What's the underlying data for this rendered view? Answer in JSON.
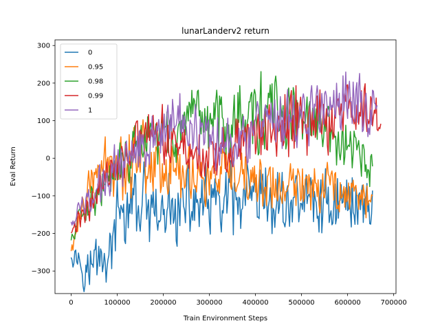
{
  "chart_data": {
    "type": "line",
    "title": "lunarLanderv2 return",
    "xlabel": "Train Environment Steps",
    "ylabel": "Eval Return",
    "xlim": [
      -35000,
      705000
    ],
    "ylim": [
      -360,
      315
    ],
    "xticks": [
      0,
      100000,
      200000,
      300000,
      400000,
      500000,
      600000,
      700000
    ],
    "xtick_labels": [
      "0",
      "100000",
      "200000",
      "300000",
      "400000",
      "500000",
      "600000",
      "700000"
    ],
    "yticks": [
      -300,
      -200,
      -100,
      0,
      100,
      200,
      300
    ],
    "ytick_labels": [
      "−300",
      "−200",
      "−100",
      "0",
      "100",
      "200",
      "300"
    ],
    "grid": false,
    "legend_position": "upper-left",
    "series": [
      {
        "name": "0",
        "color": "#1f77b4",
        "x_end": 655000,
        "points": [
          [
            0,
            -240
          ],
          [
            20000,
            -270
          ],
          [
            40000,
            -300
          ],
          [
            60000,
            -250
          ],
          [
            80000,
            -280
          ],
          [
            100000,
            -160
          ],
          [
            120000,
            -150
          ],
          [
            140000,
            -120
          ],
          [
            160000,
            -130
          ],
          [
            180000,
            -170
          ],
          [
            200000,
            -160
          ],
          [
            220000,
            -140
          ],
          [
            240000,
            -140
          ],
          [
            260000,
            -120
          ],
          [
            280000,
            -120
          ],
          [
            300000,
            -130
          ],
          [
            320000,
            -130
          ],
          [
            340000,
            -110
          ],
          [
            360000,
            -140
          ],
          [
            380000,
            -110
          ],
          [
            400000,
            -130
          ],
          [
            420000,
            -110
          ],
          [
            440000,
            -140
          ],
          [
            460000,
            -110
          ],
          [
            480000,
            -120
          ],
          [
            500000,
            -100
          ],
          [
            520000,
            -110
          ],
          [
            540000,
            -130
          ],
          [
            560000,
            -110
          ],
          [
            580000,
            -120
          ],
          [
            600000,
            -110
          ],
          [
            620000,
            -110
          ],
          [
            640000,
            -120
          ],
          [
            655000,
            -130
          ]
        ],
        "amplitude": [
          40,
          60,
          80,
          80,
          70,
          90,
          110,
          120,
          120,
          110,
          110,
          110,
          110,
          110,
          110,
          110,
          110,
          110,
          120,
          120,
          110,
          110,
          110,
          110,
          100,
          100,
          100,
          100,
          100,
          100,
          100,
          100,
          90,
          60
        ]
      },
      {
        "name": "0.95",
        "color": "#ff7f0e",
        "x_end": 655000,
        "points": [
          [
            0,
            -250
          ],
          [
            20000,
            -150
          ],
          [
            40000,
            -80
          ],
          [
            60000,
            -30
          ],
          [
            80000,
            -20
          ],
          [
            100000,
            0
          ],
          [
            120000,
            -20
          ],
          [
            140000,
            20
          ],
          [
            160000,
            10
          ],
          [
            180000,
            -10
          ],
          [
            200000,
            -20
          ],
          [
            220000,
            -30
          ],
          [
            240000,
            -40
          ],
          [
            260000,
            -30
          ],
          [
            280000,
            -50
          ],
          [
            300000,
            -60
          ],
          [
            320000,
            -50
          ],
          [
            340000,
            -50
          ],
          [
            360000,
            -60
          ],
          [
            380000,
            -60
          ],
          [
            400000,
            -60
          ],
          [
            420000,
            -70
          ],
          [
            440000,
            -80
          ],
          [
            460000,
            -90
          ],
          [
            480000,
            -80
          ],
          [
            500000,
            -70
          ],
          [
            520000,
            -60
          ],
          [
            540000,
            -70
          ],
          [
            560000,
            -70
          ],
          [
            580000,
            -80
          ],
          [
            600000,
            -90
          ],
          [
            620000,
            -90
          ],
          [
            640000,
            -100
          ],
          [
            655000,
            -110
          ]
        ],
        "amplitude": [
          30,
          50,
          60,
          70,
          80,
          100,
          110,
          110,
          100,
          100,
          90,
          90,
          90,
          90,
          90,
          80,
          80,
          80,
          80,
          80,
          80,
          80,
          80,
          80,
          80,
          80,
          80,
          80,
          80,
          70,
          70,
          70,
          70,
          60
        ]
      },
      {
        "name": "0.98",
        "color": "#2ca02c",
        "x_end": 655000,
        "points": [
          [
            0,
            -220
          ],
          [
            20000,
            -150
          ],
          [
            40000,
            -120
          ],
          [
            60000,
            -90
          ],
          [
            80000,
            -60
          ],
          [
            100000,
            -40
          ],
          [
            120000,
            0
          ],
          [
            140000,
            20
          ],
          [
            160000,
            40
          ],
          [
            180000,
            50
          ],
          [
            200000,
            60
          ],
          [
            220000,
            60
          ],
          [
            240000,
            70
          ],
          [
            260000,
            80
          ],
          [
            280000,
            90
          ],
          [
            300000,
            100
          ],
          [
            320000,
            110
          ],
          [
            340000,
            100
          ],
          [
            360000,
            110
          ],
          [
            380000,
            120
          ],
          [
            400000,
            110
          ],
          [
            420000,
            120
          ],
          [
            440000,
            120
          ],
          [
            460000,
            110
          ],
          [
            480000,
            110
          ],
          [
            500000,
            100
          ],
          [
            520000,
            90
          ],
          [
            540000,
            80
          ],
          [
            560000,
            60
          ],
          [
            580000,
            40
          ],
          [
            600000,
            20
          ],
          [
            620000,
            10
          ],
          [
            640000,
            -10
          ],
          [
            655000,
            -40
          ]
        ],
        "amplitude": [
          20,
          40,
          50,
          50,
          60,
          70,
          80,
          80,
          90,
          90,
          90,
          90,
          90,
          100,
          100,
          110,
          110,
          110,
          110,
          110,
          110,
          110,
          110,
          100,
          100,
          100,
          90,
          90,
          90,
          80,
          70,
          70,
          70,
          50
        ]
      },
      {
        "name": "0.99",
        "color": "#d62728",
        "x_end": 672000,
        "points": [
          [
            0,
            -200
          ],
          [
            20000,
            -160
          ],
          [
            40000,
            -120
          ],
          [
            60000,
            -80
          ],
          [
            80000,
            -40
          ],
          [
            100000,
            0
          ],
          [
            120000,
            20
          ],
          [
            140000,
            40
          ],
          [
            160000,
            50
          ],
          [
            180000,
            60
          ],
          [
            200000,
            50
          ],
          [
            220000,
            40
          ],
          [
            240000,
            30
          ],
          [
            260000,
            20
          ],
          [
            280000,
            10
          ],
          [
            300000,
            0
          ],
          [
            320000,
            10
          ],
          [
            340000,
            20
          ],
          [
            360000,
            40
          ],
          [
            380000,
            50
          ],
          [
            400000,
            60
          ],
          [
            420000,
            60
          ],
          [
            440000,
            70
          ],
          [
            460000,
            80
          ],
          [
            480000,
            90
          ],
          [
            500000,
            100
          ],
          [
            520000,
            100
          ],
          [
            540000,
            100
          ],
          [
            560000,
            110
          ],
          [
            580000,
            110
          ],
          [
            600000,
            120
          ],
          [
            620000,
            130
          ],
          [
            640000,
            130
          ],
          [
            660000,
            120
          ],
          [
            672000,
            100
          ]
        ],
        "amplitude": [
          20,
          40,
          50,
          60,
          60,
          70,
          80,
          80,
          80,
          80,
          80,
          80,
          80,
          80,
          80,
          80,
          80,
          80,
          80,
          90,
          90,
          90,
          90,
          100,
          100,
          100,
          100,
          100,
          100,
          100,
          100,
          100,
          100,
          80,
          60
        ]
      },
      {
        "name": "1",
        "color": "#9467bd",
        "x_end": 665000,
        "points": [
          [
            0,
            -170
          ],
          [
            20000,
            -140
          ],
          [
            40000,
            -110
          ],
          [
            60000,
            -80
          ],
          [
            80000,
            -50
          ],
          [
            100000,
            -20
          ],
          [
            120000,
            10
          ],
          [
            140000,
            30
          ],
          [
            160000,
            50
          ],
          [
            180000,
            70
          ],
          [
            200000,
            80
          ],
          [
            220000,
            90
          ],
          [
            240000,
            100
          ],
          [
            260000,
            90
          ],
          [
            280000,
            80
          ],
          [
            300000,
            70
          ],
          [
            320000,
            60
          ],
          [
            340000,
            60
          ],
          [
            360000,
            60
          ],
          [
            380000,
            70
          ],
          [
            400000,
            70
          ],
          [
            420000,
            70
          ],
          [
            440000,
            80
          ],
          [
            460000,
            90
          ],
          [
            480000,
            100
          ],
          [
            500000,
            110
          ],
          [
            520000,
            120
          ],
          [
            540000,
            130
          ],
          [
            560000,
            140
          ],
          [
            580000,
            150
          ],
          [
            600000,
            150
          ],
          [
            620000,
            150
          ],
          [
            640000,
            140
          ],
          [
            665000,
            130
          ]
        ],
        "amplitude": [
          20,
          40,
          50,
          60,
          60,
          70,
          80,
          80,
          80,
          80,
          90,
          90,
          90,
          90,
          90,
          90,
          90,
          90,
          90,
          90,
          90,
          90,
          90,
          90,
          90,
          90,
          90,
          90,
          90,
          90,
          90,
          90,
          80,
          60
        ]
      }
    ]
  }
}
